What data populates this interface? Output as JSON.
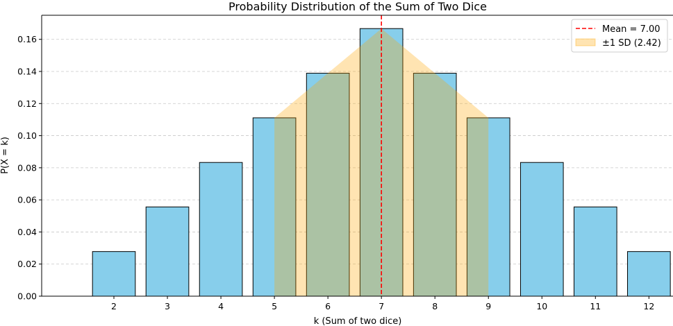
{
  "chart_data": {
    "type": "bar",
    "title": "Probability Distribution of the Sum of Two Dice",
    "xlabel": "k (Sum of two dice)",
    "ylabel": "P(X = k)",
    "categories": [
      "2",
      "3",
      "4",
      "5",
      "6",
      "7",
      "8",
      "9",
      "10",
      "11",
      "12"
    ],
    "x": [
      2,
      3,
      4,
      5,
      6,
      7,
      8,
      9,
      10,
      11,
      12
    ],
    "values": [
      0.0278,
      0.0556,
      0.0833,
      0.1111,
      0.1389,
      0.1667,
      0.1389,
      0.1111,
      0.0833,
      0.0556,
      0.0278
    ],
    "xlim": [
      0.65,
      12.45
    ],
    "ylim": [
      0,
      0.175
    ],
    "yticks": [
      0.0,
      0.02,
      0.04,
      0.06,
      0.08,
      0.1,
      0.12,
      0.14,
      0.16
    ],
    "ytick_labels": [
      "0.00",
      "0.02",
      "0.04",
      "0.06",
      "0.08",
      "0.10",
      "0.12",
      "0.14",
      "0.16"
    ],
    "grid": "y-dashed",
    "bar_color": "#87CEEB",
    "bar_edge_color": "#000000",
    "mean": {
      "value": 7.0,
      "label": "Mean = 7.00",
      "color": "#FF0000",
      "style": "dashed"
    },
    "sd_band": {
      "label": "±1 SD (2.42)",
      "sd": 2.42,
      "x": [
        5,
        6,
        7,
        8,
        9
      ],
      "y": [
        0.1111,
        0.1389,
        0.1667,
        0.1389,
        0.1111
      ],
      "color": "#FFA500",
      "alpha": 0.3
    },
    "legend": {
      "placement": "top-right",
      "entries": [
        "Mean = 7.00",
        "±1 SD (2.42)"
      ]
    }
  }
}
